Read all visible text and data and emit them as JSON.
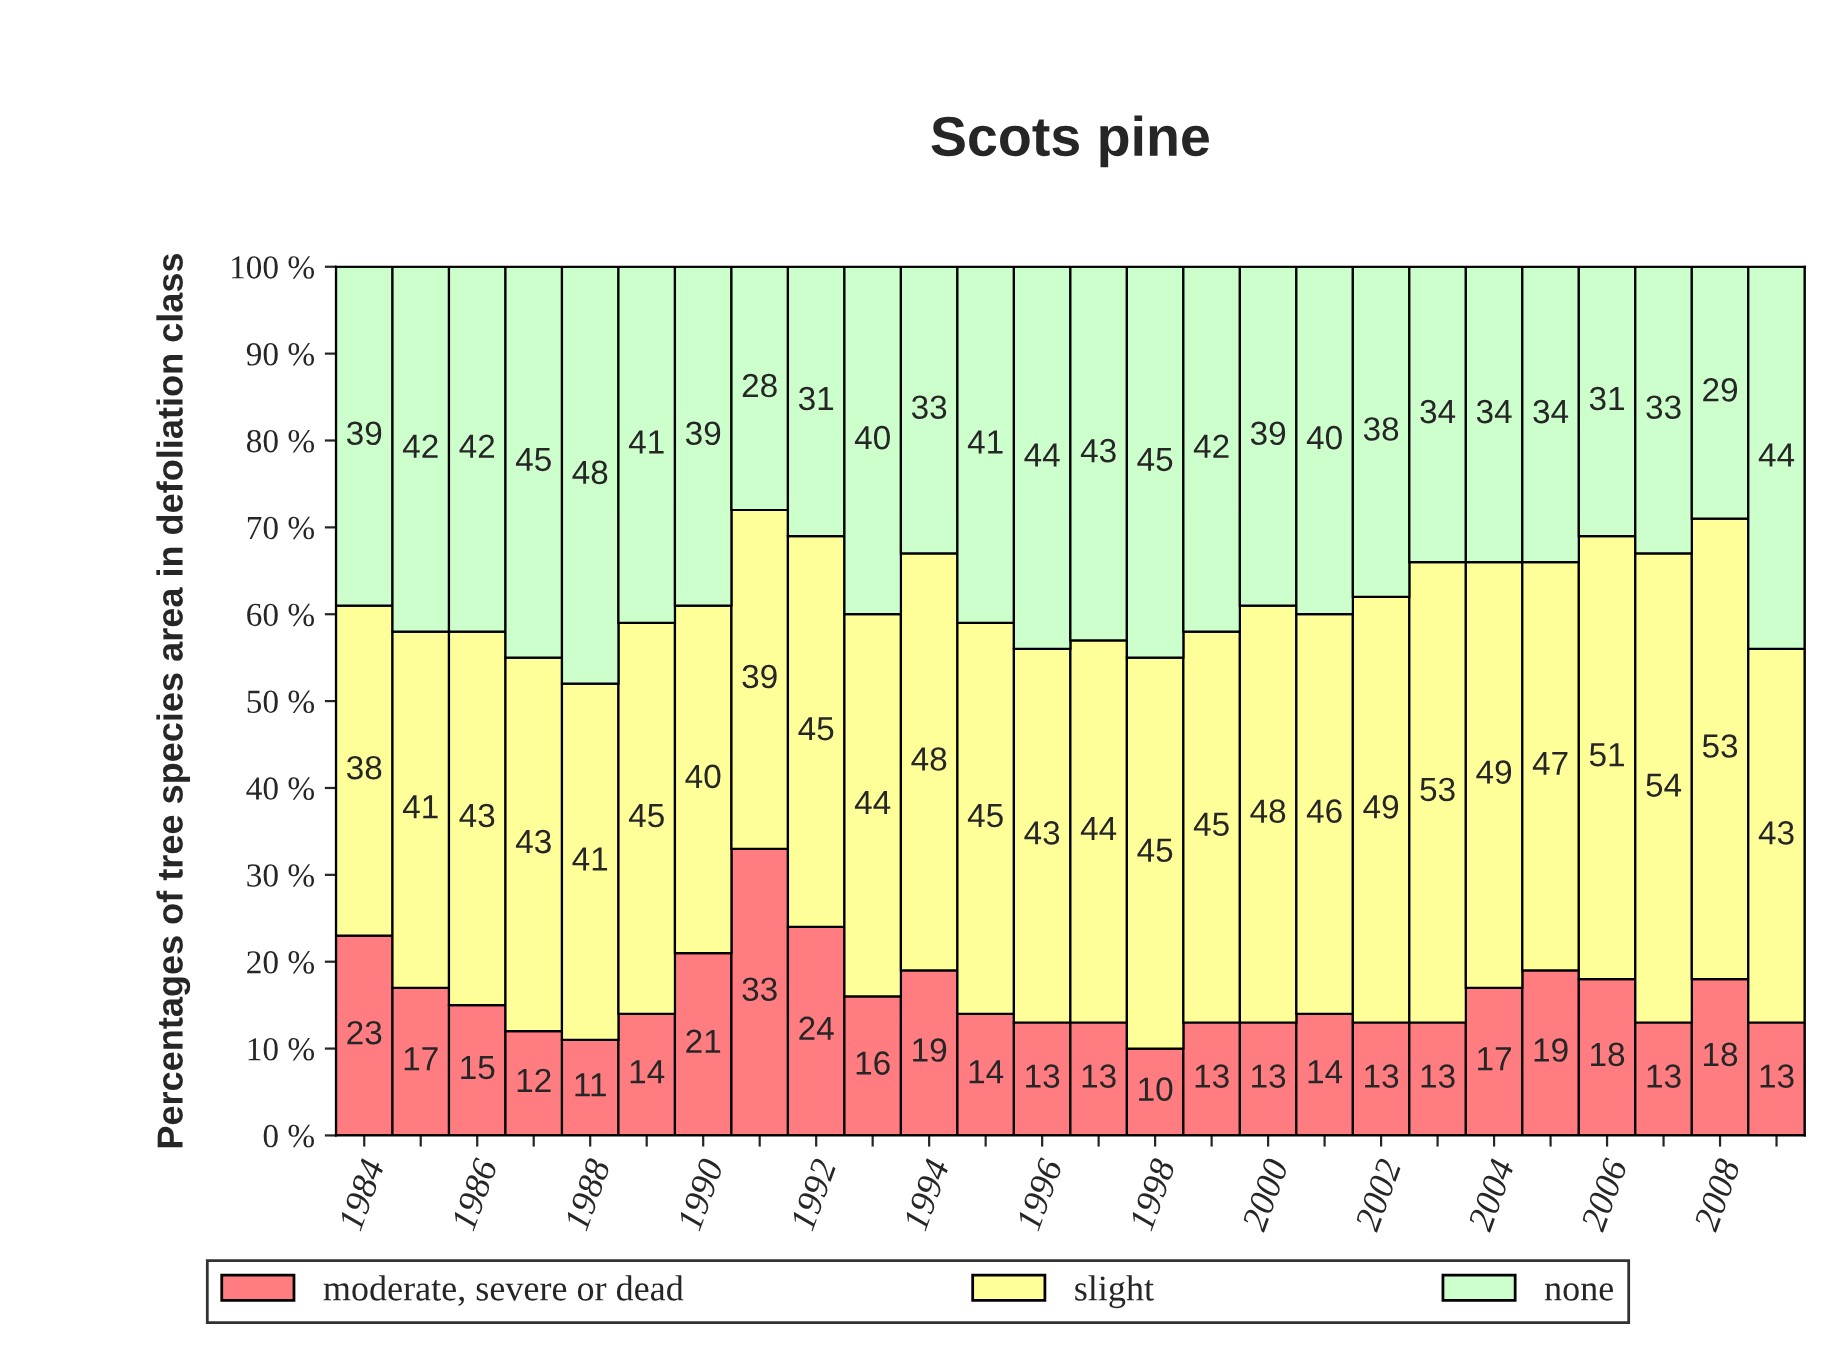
{
  "chart_data": {
    "type": "bar",
    "title": "Scots pine",
    "ylabel": "Percentages of tree species area in defoliation class",
    "categories": [
      "1984",
      null,
      "1986",
      null,
      "1988",
      null,
      "1990",
      null,
      "1992",
      null,
      "1994",
      null,
      "1996",
      null,
      "1998",
      null,
      "2000",
      null,
      "2002",
      null,
      "2004",
      null,
      "2006",
      null,
      "2008",
      null
    ],
    "stacked": true,
    "data_labels": true,
    "legend": "bottom",
    "ylim": [
      0,
      100
    ],
    "yticks": [
      {
        "value": 0,
        "label": "0 %"
      },
      {
        "value": 10,
        "label": "10 %"
      },
      {
        "value": 20,
        "label": "20 %"
      },
      {
        "value": 30,
        "label": "30 %"
      },
      {
        "value": 40,
        "label": "40 %"
      },
      {
        "value": 50,
        "label": "50 %"
      },
      {
        "value": 60,
        "label": "60 %"
      },
      {
        "value": 70,
        "label": "70 %"
      },
      {
        "value": 80,
        "label": "80 %"
      },
      {
        "value": 90,
        "label": "90 %"
      },
      {
        "value": 100,
        "label": "100 %"
      }
    ],
    "series": [
      {
        "name": "moderate, severe or dead",
        "color": "#ff7c80",
        "values": [
          23,
          17,
          15,
          12,
          11,
          14,
          21,
          33,
          24,
          16,
          19,
          14,
          13,
          13,
          10,
          13,
          13,
          14,
          13,
          13,
          17,
          19,
          18,
          13,
          18,
          13
        ]
      },
      {
        "name": "slight",
        "color": "#ffff99",
        "values": [
          38,
          41,
          43,
          43,
          41,
          45,
          40,
          39,
          45,
          44,
          48,
          45,
          43,
          44,
          45,
          45,
          48,
          46,
          49,
          53,
          49,
          47,
          51,
          54,
          53,
          43
        ]
      },
      {
        "name": "none",
        "color": "#ccffcc",
        "values": [
          39,
          42,
          42,
          45,
          48,
          41,
          39,
          28,
          31,
          40,
          33,
          41,
          44,
          43,
          45,
          42,
          39,
          40,
          38,
          34,
          34,
          34,
          31,
          33,
          29,
          44
        ]
      }
    ]
  }
}
